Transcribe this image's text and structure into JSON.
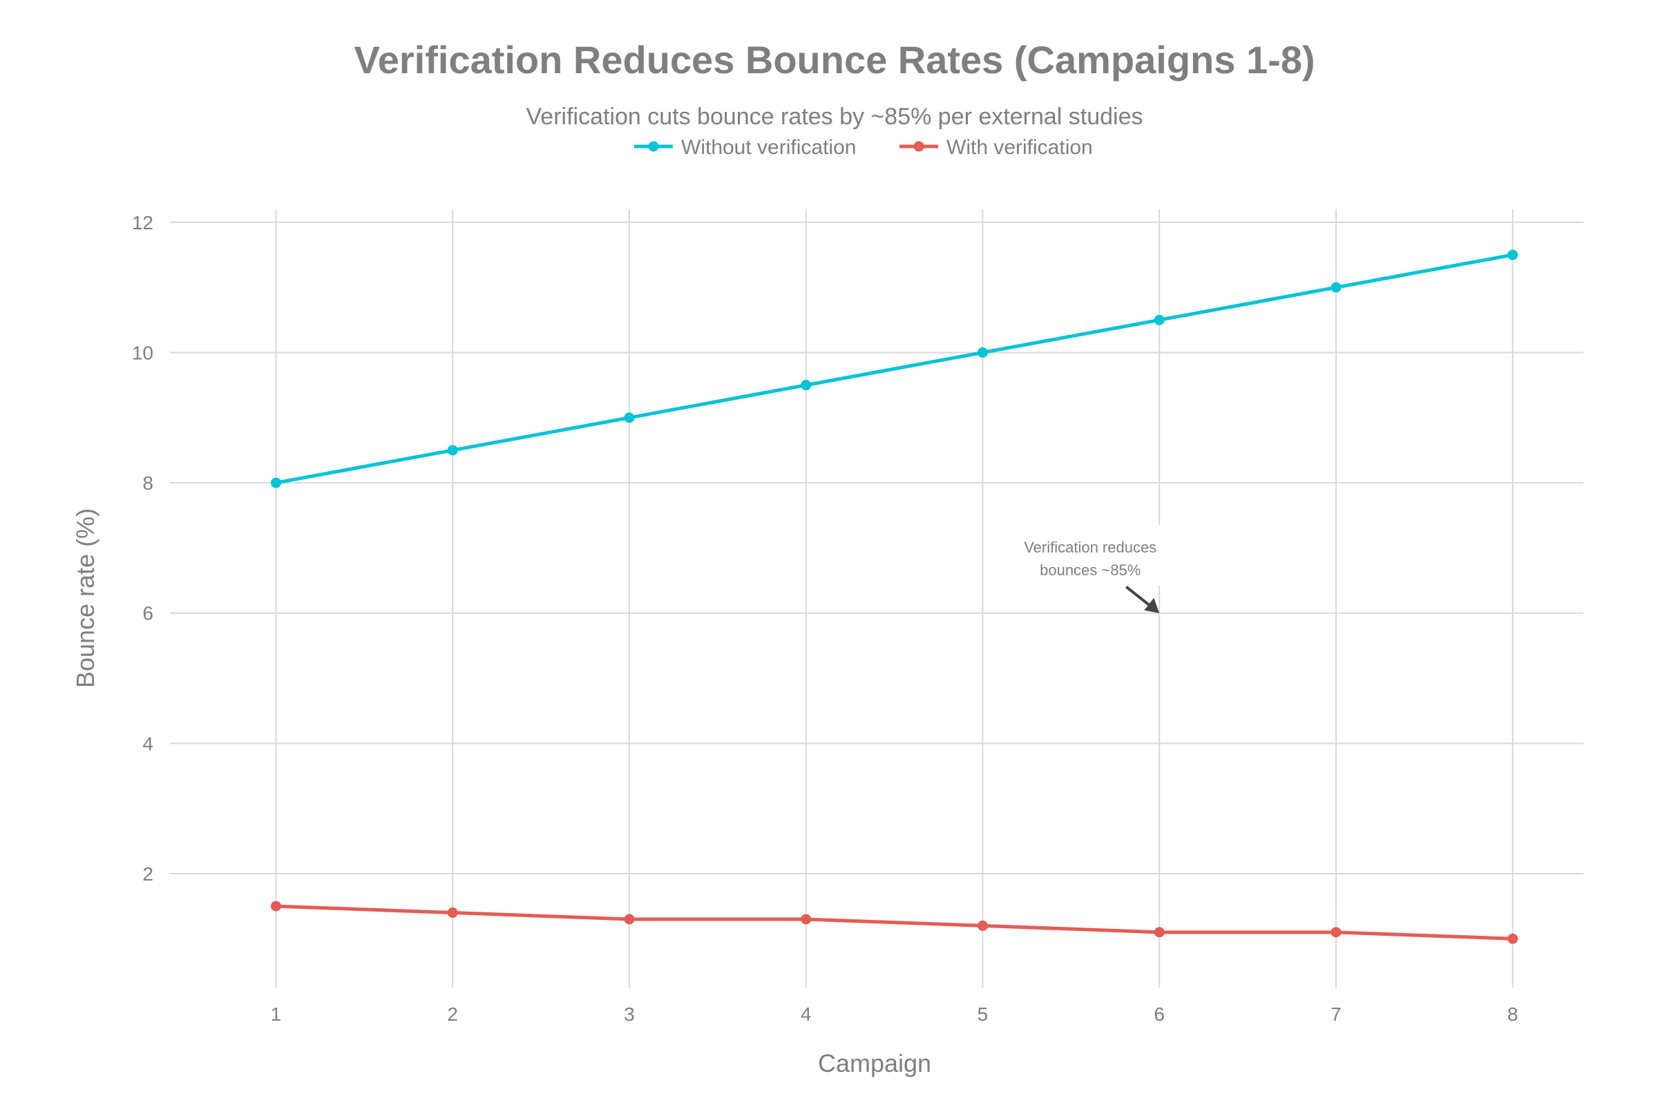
{
  "chart_data": {
    "type": "line",
    "title": "Verification Reduces Bounce Rates (Campaigns 1-8)",
    "subtitle": "Verification cuts bounce rates by ~85% per external studies",
    "xlabel": "Campaign",
    "ylabel": "Bounce rate (%)",
    "x": [
      1,
      2,
      3,
      4,
      5,
      6,
      7,
      8
    ],
    "x_ticks": [
      "1",
      "2",
      "3",
      "4",
      "5",
      "6",
      "7",
      "8"
    ],
    "y_ticks": [
      "2",
      "4",
      "6",
      "8",
      "10",
      "12"
    ],
    "xlim": [
      0.4,
      8.4
    ],
    "ylim": [
      0.25,
      12.2
    ],
    "grid": true,
    "legend_placement": "top-center",
    "series": [
      {
        "name": "Without verification",
        "color": "#00c3d5",
        "values": [
          8,
          8.5,
          9,
          9.5,
          10,
          10.5,
          11,
          11.5
        ]
      },
      {
        "name": "With verification",
        "color": "#e55c55",
        "values": [
          1.5,
          1.4,
          1.3,
          1.3,
          1.2,
          1.1,
          1.1,
          1.0
        ]
      }
    ],
    "annotation": {
      "lines": [
        "Verification reduces",
        "bounces ~85%"
      ],
      "x": 6,
      "y": 6
    }
  }
}
